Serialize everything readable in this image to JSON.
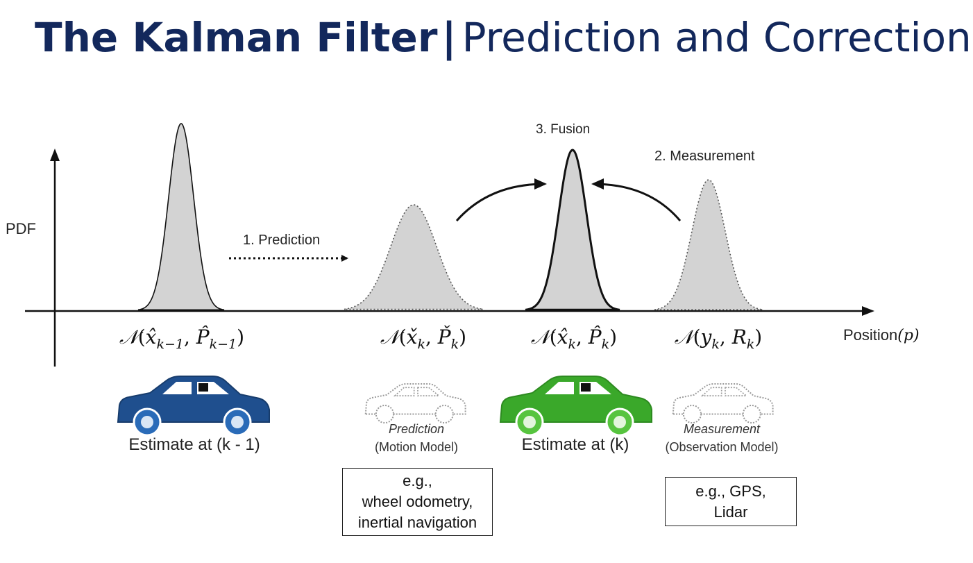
{
  "title": {
    "bold": "The Kalman Filter",
    "separator": "|",
    "light": "Prediction and Correction"
  },
  "axes": {
    "y_label": "PDF",
    "x_label": "Position",
    "x_label_symbol": "(p)"
  },
  "steps": {
    "prediction": "1. Prediction",
    "measurement": "2. Measurement",
    "fusion": "3. Fusion"
  },
  "distributions": [
    {
      "id": "prior",
      "mean_symbol": "x̂",
      "cov_symbol": "P̂",
      "sub": "k−1",
      "style": "solid"
    },
    {
      "id": "predicted",
      "mean_symbol": "x̌",
      "cov_symbol": "P̌",
      "sub": "k",
      "style": "dotted"
    },
    {
      "id": "fused",
      "mean_symbol": "x̂",
      "cov_symbol": "P̂",
      "sub": "k",
      "style": "solid"
    },
    {
      "id": "measurement",
      "mean_symbol": "y",
      "cov_symbol": "R",
      "sub": "k",
      "style": "dotted"
    }
  ],
  "cars": {
    "prior": {
      "caption": "Estimate at (k - 1)",
      "color": "#1f4f8e",
      "wheel_color": "#2a6bb8"
    },
    "prediction": {
      "caption_italic": "Prediction",
      "caption_sub": "(Motion Model)",
      "color": "#bdbdbd"
    },
    "fused": {
      "caption": "Estimate at (k)",
      "color": "#3aa82a",
      "wheel_color": "#57c43f"
    },
    "measurement": {
      "caption_italic": "Measurement",
      "caption_sub": "(Observation Model)",
      "color": "#bdbdbd"
    }
  },
  "examples": {
    "prediction": [
      "e.g.,",
      "wheel odometry,",
      "inertial navigation"
    ],
    "measurement": [
      "e.g., GPS,",
      "Lidar"
    ]
  },
  "colors": {
    "title": "#13285c",
    "curve_fill": "#d3d3d3",
    "axis": "#111111"
  }
}
